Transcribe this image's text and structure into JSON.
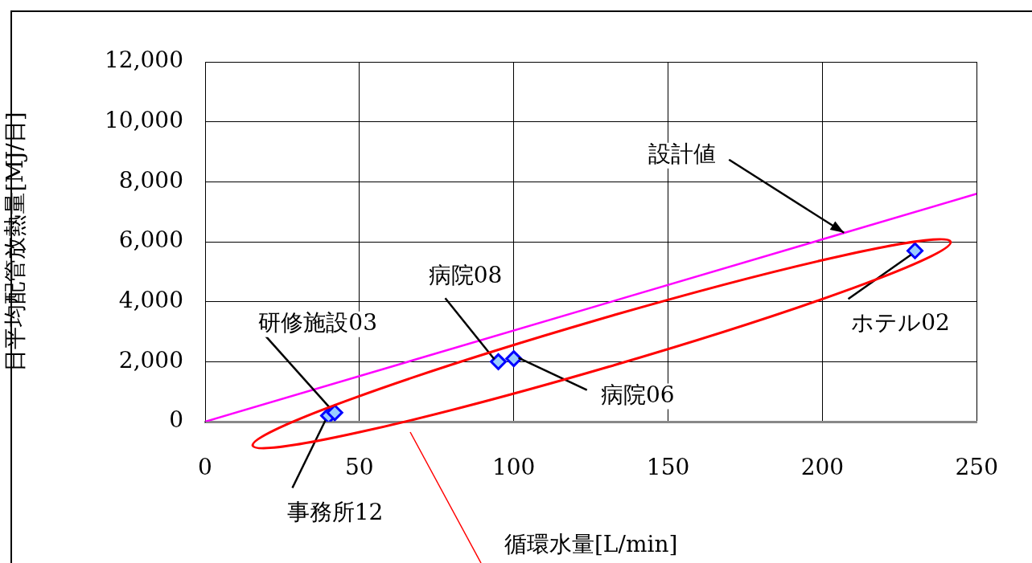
{
  "chart_data": {
    "type": "scatter",
    "xlabel": "循環水量[L/min]",
    "ylabel": "日平均配管放熱量[MJ/日]",
    "xlim": [
      0,
      250
    ],
    "xticks": [
      0,
      50,
      100,
      150,
      200,
      250
    ],
    "ylim": [
      0,
      12000
    ],
    "yticks": [
      {
        "value": 0,
        "label": "0"
      },
      {
        "value": 2000,
        "label": "2,000"
      },
      {
        "value": 4000,
        "label": "4,000"
      },
      {
        "value": 6000,
        "label": "6,000"
      },
      {
        "value": 8000,
        "label": "8,000"
      },
      {
        "value": 10000,
        "label": "10,000"
      },
      {
        "value": 12000,
        "label": "12,000"
      }
    ],
    "grid": true,
    "legend": false,
    "marker": "diamond",
    "series": [
      {
        "type": "scatter",
        "color": "#0000ff",
        "x": [
          40,
          42,
          95,
          100,
          230
        ],
        "values": [
          200,
          300,
          2000,
          2100,
          5700
        ]
      },
      {
        "type": "line",
        "color": "#ff00ff",
        "marker": "none",
        "x": [
          0,
          250
        ],
        "values": [
          0,
          7600
        ]
      }
    ],
    "annotations": [
      {
        "text": "研修施設03",
        "x": 42,
        "y": 300
      },
      {
        "text": "事務所12",
        "x": 40,
        "y": 200
      },
      {
        "text": "病院08",
        "x": 95,
        "y": 2000
      },
      {
        "text": "病院06",
        "x": 100,
        "y": 2100
      },
      {
        "text": "ホテル02",
        "x": 230,
        "y": 5700
      },
      {
        "text": "設計値",
        "x": 207,
        "y": 6300
      }
    ]
  }
}
